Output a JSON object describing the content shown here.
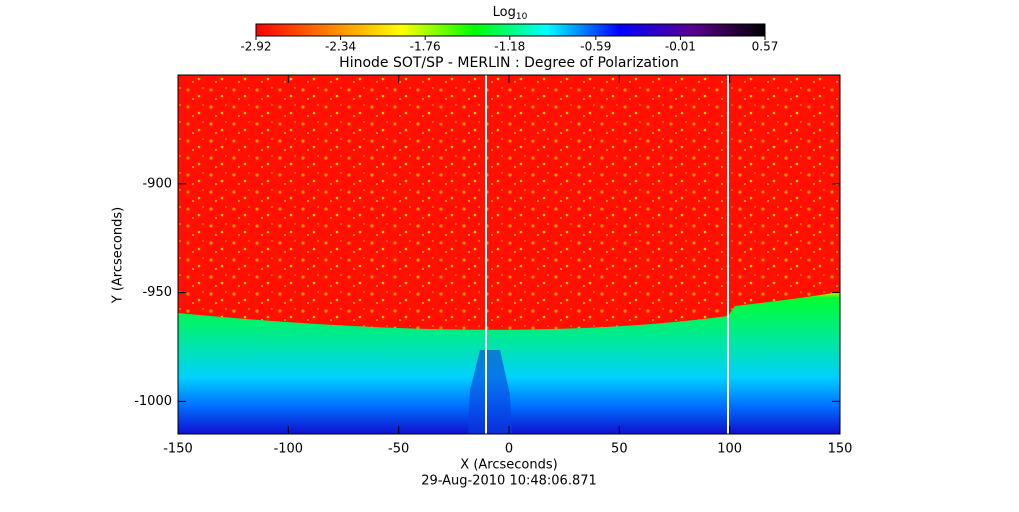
{
  "chart_data": {
    "type": "image",
    "title": "Hinode SOT/SP - MERLIN : Degree of Polarization",
    "subtitle": "29-Aug-2010 10:48:06.871",
    "x_label": "X (Arcseconds)",
    "y_label": "Y (Arcseconds)",
    "xlim": [
      -150,
      150
    ],
    "xticks": [
      -150,
      -100,
      -50,
      0,
      50,
      100,
      150
    ],
    "ylim": [
      -1015,
      -850
    ],
    "yticks": [
      -900,
      -950,
      -1000
    ],
    "colorbar": {
      "label": "Log",
      "label_sub": "10",
      "clim": [
        -2.92,
        0.57
      ],
      "ticks": [
        -2.92,
        -2.34,
        -1.76,
        -1.18,
        -0.59,
        -0.01,
        0.57
      ],
      "colors": [
        "#ff0000",
        "#ff8000",
        "#ffff00",
        "#00ff00",
        "#00ffff",
        "#0000ff",
        "#5a0090",
        "#000000"
      ]
    }
  }
}
